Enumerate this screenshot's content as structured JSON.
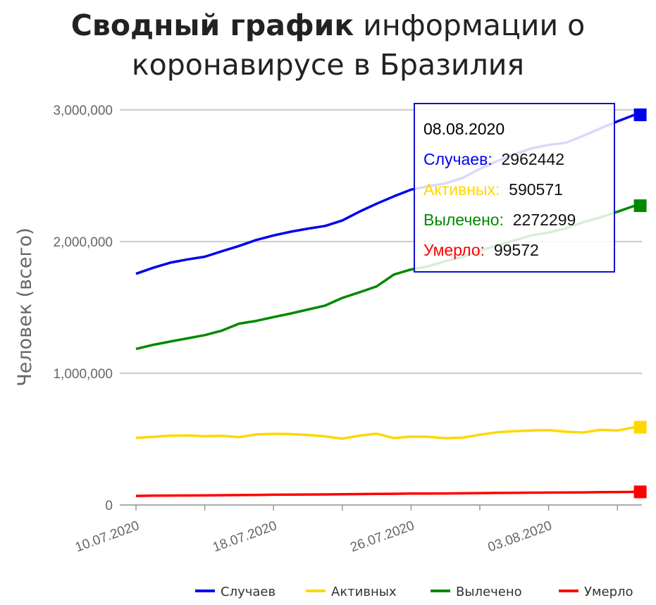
{
  "title_bold": "Сводный график",
  "title_rest": " информации о коронавирусе в Бразилия",
  "chart_data": {
    "type": "line",
    "ylabel": "Человек (всего)",
    "ylim": [
      0,
      3000000
    ],
    "y_ticks": [
      "0",
      "1,000,000",
      "2,000,000",
      "3,000,000"
    ],
    "x_tick_labels": [
      "10.07.2020",
      "18.07.2020",
      "26.07.2020",
      "03.08.2020"
    ],
    "x_tick_days": [
      0,
      8,
      16,
      24
    ],
    "x": [
      "10.07.2020",
      "11.07.2020",
      "12.07.2020",
      "13.07.2020",
      "14.07.2020",
      "15.07.2020",
      "16.07.2020",
      "17.07.2020",
      "18.07.2020",
      "19.07.2020",
      "20.07.2020",
      "21.07.2020",
      "22.07.2020",
      "23.07.2020",
      "24.07.2020",
      "25.07.2020",
      "26.07.2020",
      "27.07.2020",
      "28.07.2020",
      "29.07.2020",
      "30.07.2020",
      "31.07.2020",
      "01.08.2020",
      "02.08.2020",
      "03.08.2020",
      "04.08.2020",
      "05.08.2020",
      "06.08.2020",
      "07.08.2020",
      "08.08.2020"
    ],
    "series": [
      {
        "name": "Случаев",
        "color": "#0000ee",
        "values": [
          1755779,
          1800827,
          1839850,
          1864681,
          1884967,
          1926824,
          1966748,
          2012151,
          2046328,
          2074860,
          2098389,
          2118646,
          2159654,
          2227514,
          2287475,
          2343366,
          2394513,
          2419091,
          2442375,
          2483191,
          2552265,
          2610102,
          2662485,
          2707877,
          2733677,
          2750318,
          2801921,
          2859073,
          2912212,
          2962442
        ]
      },
      {
        "name": "Активных",
        "color": "#ffd700",
        "values": [
          509000,
          517000,
          526000,
          528000,
          522000,
          525000,
          515000,
          536000,
          540000,
          538000,
          532000,
          521000,
          503000,
          527000,
          541000,
          508000,
          519000,
          517000,
          507000,
          511000,
          533000,
          552000,
          560000,
          566000,
          568000,
          556000,
          550000,
          570000,
          565000,
          590571
        ]
      },
      {
        "name": "Вылечено",
        "color": "#008800",
        "values": [
          1185000,
          1216000,
          1241000,
          1265000,
          1290000,
          1324000,
          1377000,
          1398000,
          1427000,
          1454000,
          1484000,
          1514000,
          1572000,
          1615000,
          1660000,
          1750000,
          1788000,
          1812000,
          1852000,
          1884000,
          1931000,
          1970000,
          2009000,
          2047000,
          2069000,
          2100000,
          2147000,
          2183000,
          2226000,
          2272299
        ]
      },
      {
        "name": "Умерло",
        "color": "#ff0000",
        "values": [
          69184,
          70398,
          71469,
          72100,
          72833,
          74133,
          75366,
          76688,
          77932,
          78772,
          79488,
          80120,
          81487,
          82771,
          84082,
          85238,
          86449,
          87004,
          87618,
          88539,
          90134,
          91263,
          92475,
          93563,
          94104,
          94665,
          95819,
          97256,
          98493,
          99572
        ]
      }
    ],
    "tooltip": {
      "date": "08.08.2020",
      "rows": [
        {
          "label": "Случаев:",
          "value": "2962442",
          "color": "#0000ee"
        },
        {
          "label": "Активных:",
          "value": "590571",
          "color": "#ffd700"
        },
        {
          "label": "Вылечено:",
          "value": "2272299",
          "color": "#008800"
        },
        {
          "label": "Умерло:",
          "value": "99572",
          "color": "#ff0000"
        }
      ]
    },
    "legend_position": "bottom-right",
    "grid": true
  }
}
